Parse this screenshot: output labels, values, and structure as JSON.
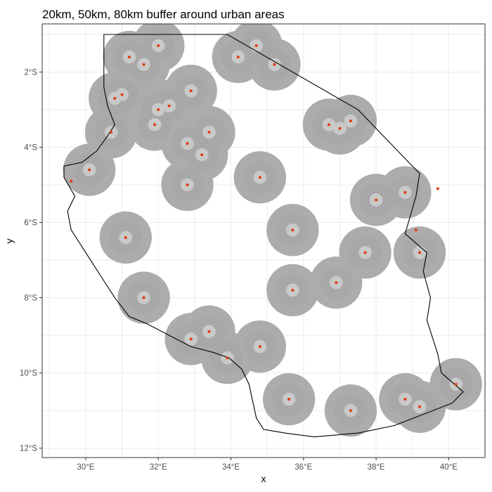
{
  "title": "20km, 50km, 80km buffer around urban areas",
  "colors": {
    "outer_buffer": "#acacac",
    "mid_buffer": "#a8a8a8",
    "inner_buffer": "#c9c9c9",
    "urban": "#e33b12",
    "boundary": "#000000",
    "grid": "#ebebeb",
    "panel_border": "#333333"
  },
  "chart_data": {
    "type": "map",
    "title": "20km, 50km, 80km buffer around urban areas",
    "xlabel": "x",
    "ylabel": "y",
    "xlim": [
      28.8,
      41.0
    ],
    "ylim": [
      -12.25,
      -0.72
    ],
    "x_ticks": [
      {
        "value": 30,
        "label": "30°E"
      },
      {
        "value": 32,
        "label": "32°E"
      },
      {
        "value": 34,
        "label": "34°E"
      },
      {
        "value": 36,
        "label": "36°E"
      },
      {
        "value": 38,
        "label": "38°E"
      },
      {
        "value": 40,
        "label": "40°E"
      }
    ],
    "y_ticks": [
      {
        "value": -2,
        "label": "2°S"
      },
      {
        "value": -4,
        "label": "4°S"
      },
      {
        "value": -6,
        "label": "6°S"
      },
      {
        "value": -8,
        "label": "8°S"
      },
      {
        "value": -10,
        "label": "10°S"
      },
      {
        "value": -12,
        "label": "12°S"
      }
    ],
    "grid": true,
    "boundary": [
      [
        30.5,
        -1.0
      ],
      [
        33.9,
        -1.0
      ],
      [
        37.5,
        -3.0
      ],
      [
        39.2,
        -4.7
      ],
      [
        39.1,
        -5.3
      ],
      [
        38.8,
        -6.3
      ],
      [
        39.4,
        -6.8
      ],
      [
        39.3,
        -7.3
      ],
      [
        39.5,
        -8.0
      ],
      [
        39.4,
        -8.6
      ],
      [
        39.7,
        -9.5
      ],
      [
        39.8,
        -10.0
      ],
      [
        40.4,
        -10.5
      ],
      [
        40.1,
        -10.8
      ],
      [
        39.3,
        -11.1
      ],
      [
        38.5,
        -11.4
      ],
      [
        37.5,
        -11.6
      ],
      [
        36.3,
        -11.7
      ],
      [
        35.5,
        -11.6
      ],
      [
        34.9,
        -11.5
      ],
      [
        34.7,
        -11.2
      ],
      [
        34.5,
        -10.3
      ],
      [
        34.3,
        -9.9
      ],
      [
        33.95,
        -9.6
      ],
      [
        33.5,
        -9.45
      ],
      [
        32.9,
        -9.3
      ],
      [
        32.3,
        -9.0
      ],
      [
        31.7,
        -8.7
      ],
      [
        31.2,
        -8.5
      ],
      [
        30.8,
        -8.0
      ],
      [
        30.4,
        -7.4
      ],
      [
        30.0,
        -6.8
      ],
      [
        29.6,
        -6.2
      ],
      [
        29.5,
        -5.7
      ],
      [
        29.7,
        -5.3
      ],
      [
        29.4,
        -4.8
      ],
      [
        29.4,
        -4.5
      ],
      [
        29.9,
        -4.4
      ],
      [
        30.3,
        -4.1
      ],
      [
        30.6,
        -3.7
      ],
      [
        30.8,
        -3.4
      ],
      [
        30.6,
        -2.9
      ],
      [
        30.5,
        -2.4
      ],
      [
        30.5,
        -1.0
      ]
    ],
    "urban_areas": [
      {
        "lon": 31.2,
        "lat": -1.6,
        "buffer": true
      },
      {
        "lon": 31.6,
        "lat": -1.8,
        "buffer": true
      },
      {
        "lon": 32.0,
        "lat": -1.3,
        "buffer": true
      },
      {
        "lon": 34.7,
        "lat": -1.3,
        "buffer": true
      },
      {
        "lon": 34.2,
        "lat": -1.6,
        "buffer": true
      },
      {
        "lon": 35.2,
        "lat": -1.8,
        "buffer": true
      },
      {
        "lon": 30.8,
        "lat": -2.7,
        "buffer": true
      },
      {
        "lon": 31.0,
        "lat": -2.6,
        "buffer": true
      },
      {
        "lon": 32.0,
        "lat": -3.0,
        "buffer": true
      },
      {
        "lon": 32.3,
        "lat": -2.9,
        "buffer": true
      },
      {
        "lon": 32.9,
        "lat": -2.5,
        "buffer": true
      },
      {
        "lon": 31.9,
        "lat": -3.4,
        "buffer": true
      },
      {
        "lon": 30.7,
        "lat": -3.6,
        "buffer": true
      },
      {
        "lon": 30.1,
        "lat": -4.6,
        "buffer": true
      },
      {
        "lon": 29.6,
        "lat": -4.9,
        "buffer": false
      },
      {
        "lon": 32.8,
        "lat": -3.9,
        "buffer": true
      },
      {
        "lon": 33.4,
        "lat": -3.6,
        "buffer": true
      },
      {
        "lon": 33.2,
        "lat": -4.2,
        "buffer": true
      },
      {
        "lon": 32.8,
        "lat": -5.0,
        "buffer": true
      },
      {
        "lon": 34.8,
        "lat": -4.8,
        "buffer": true
      },
      {
        "lon": 36.7,
        "lat": -3.4,
        "buffer": true
      },
      {
        "lon": 37.0,
        "lat": -3.5,
        "buffer": true
      },
      {
        "lon": 37.3,
        "lat": -3.3,
        "buffer": true
      },
      {
        "lon": 38.0,
        "lat": -5.4,
        "buffer": true
      },
      {
        "lon": 38.8,
        "lat": -5.2,
        "buffer": true
      },
      {
        "lon": 39.7,
        "lat": -5.1,
        "buffer": false
      },
      {
        "lon": 39.1,
        "lat": -6.2,
        "buffer": false
      },
      {
        "lon": 39.2,
        "lat": -6.8,
        "buffer": true
      },
      {
        "lon": 37.7,
        "lat": -6.8,
        "buffer": true
      },
      {
        "lon": 35.7,
        "lat": -6.2,
        "buffer": true
      },
      {
        "lon": 31.1,
        "lat": -6.4,
        "buffer": true
      },
      {
        "lon": 31.6,
        "lat": -8.0,
        "buffer": true
      },
      {
        "lon": 35.7,
        "lat": -7.8,
        "buffer": true
      },
      {
        "lon": 36.9,
        "lat": -7.6,
        "buffer": true
      },
      {
        "lon": 33.4,
        "lat": -8.9,
        "buffer": true
      },
      {
        "lon": 32.9,
        "lat": -9.1,
        "buffer": true
      },
      {
        "lon": 34.8,
        "lat": -9.3,
        "buffer": true
      },
      {
        "lon": 33.9,
        "lat": -9.6,
        "buffer": true
      },
      {
        "lon": 35.6,
        "lat": -10.7,
        "buffer": true
      },
      {
        "lon": 37.3,
        "lat": -11.0,
        "buffer": true
      },
      {
        "lon": 38.8,
        "lat": -10.7,
        "buffer": true
      },
      {
        "lon": 39.2,
        "lat": -10.9,
        "buffer": true
      },
      {
        "lon": 40.2,
        "lat": -10.3,
        "buffer": true
      }
    ]
  }
}
